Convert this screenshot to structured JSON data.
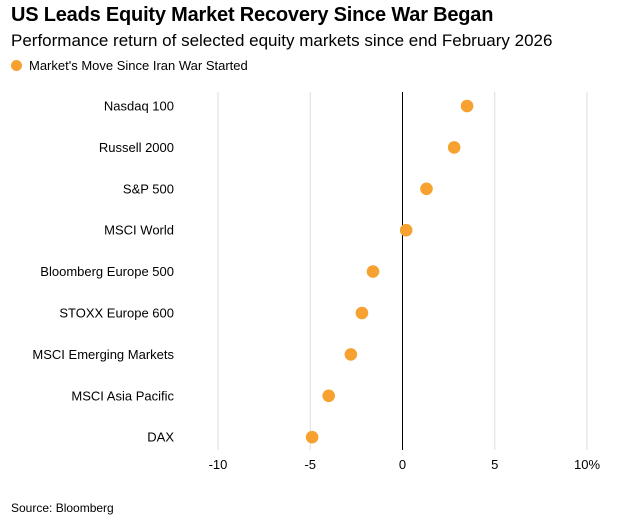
{
  "chart_data": {
    "type": "scatter",
    "title": "US Leads Equity Market Recovery Since War Began",
    "subtitle": "Performance return of selected equity markets since end February 2026",
    "legend": [
      {
        "label": "Market's Move Since Iran War Started",
        "color": "#f7a131"
      }
    ],
    "legend_position": "top-left",
    "categories": [
      "Nasdaq 100",
      "Russell 2000",
      "S&P 500",
      "MSCI World",
      "Bloomberg Europe 500",
      "STOXX Europe 600",
      "MSCI Emerging Markets",
      "MSCI Asia Pacific",
      "DAX"
    ],
    "values": [
      3.5,
      2.8,
      1.3,
      0.2,
      -1.6,
      -2.2,
      -2.8,
      -4.0,
      -4.9
    ],
    "xlim": [
      -10,
      10
    ],
    "xticks": [
      -10,
      -5,
      0,
      5,
      10
    ],
    "xtick_labels": [
      "-10",
      "-5",
      "0",
      "5",
      "10%"
    ],
    "xlabel": "",
    "ylabel": "",
    "grid": "vertical",
    "source": "Source: Bloomberg"
  }
}
